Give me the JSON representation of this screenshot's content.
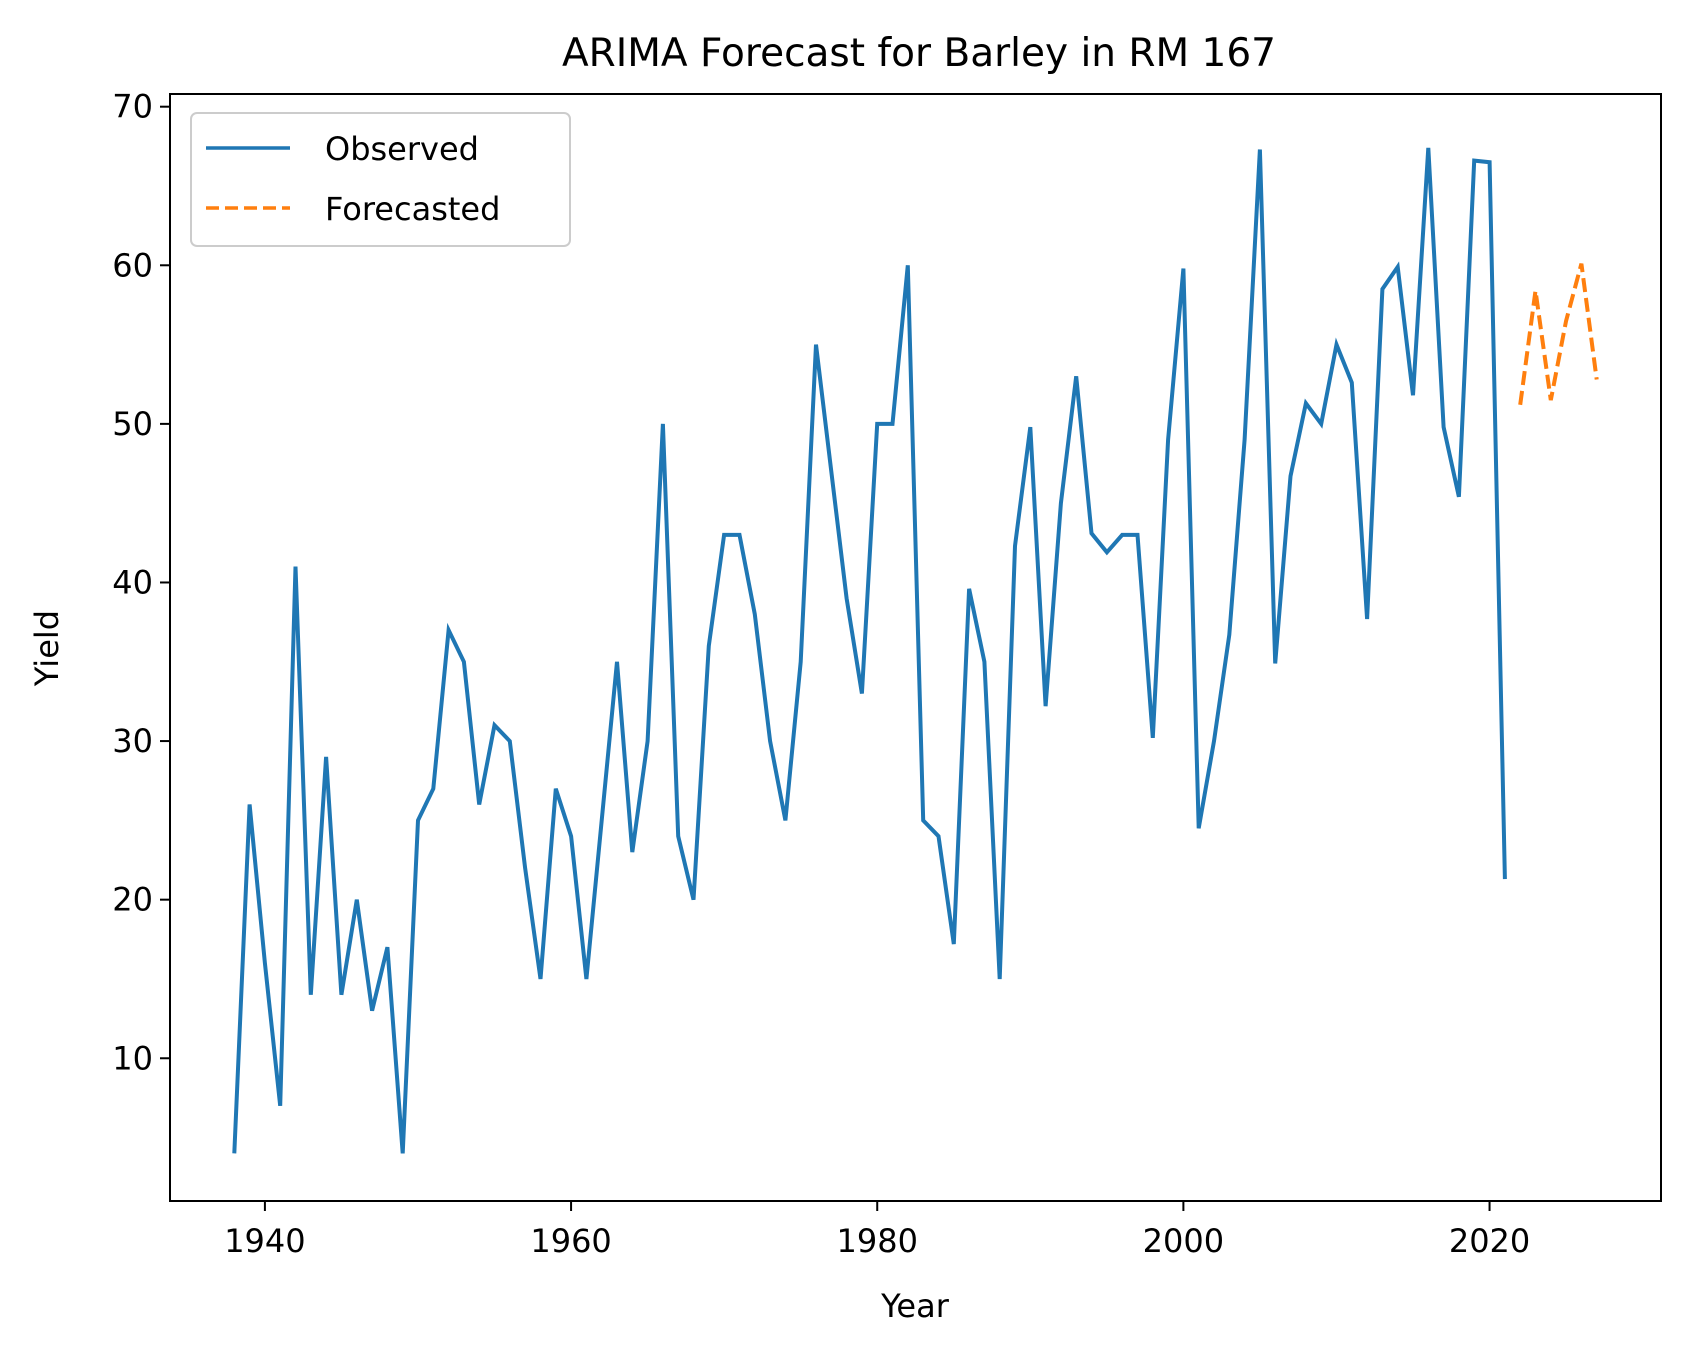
{
  "chart_data": {
    "type": "line",
    "title": "ARIMA Forecast for Barley in RM 167",
    "xlabel": "Year",
    "ylabel": "Yield",
    "xlim": [
      1933.8,
      2031.2
    ],
    "ylim": [
      1.0,
      70.8
    ],
    "xticks": [
      1940,
      1960,
      1980,
      2000,
      2020
    ],
    "yticks": [
      10,
      20,
      30,
      40,
      50,
      60,
      70
    ],
    "grid": false,
    "legend_position": "upper-left",
    "series": [
      {
        "name": "Observed",
        "color": "#1f77b4",
        "style": "solid",
        "x": [
          1938,
          1939,
          1940,
          1941,
          1942,
          1943,
          1944,
          1945,
          1946,
          1947,
          1948,
          1949,
          1950,
          1951,
          1952,
          1953,
          1954,
          1955,
          1956,
          1957,
          1958,
          1959,
          1960,
          1961,
          1962,
          1963,
          1964,
          1965,
          1966,
          1967,
          1968,
          1969,
          1970,
          1971,
          1972,
          1973,
          1974,
          1975,
          1976,
          1977,
          1978,
          1979,
          1980,
          1981,
          1982,
          1983,
          1984,
          1985,
          1986,
          1987,
          1988,
          1989,
          1990,
          1991,
          1992,
          1993,
          1994,
          1995,
          1996,
          1997,
          1998,
          1999,
          2000,
          2001,
          2002,
          2003,
          2004,
          2005,
          2006,
          2007,
          2008,
          2009,
          2010,
          2011,
          2012,
          2013,
          2014,
          2015,
          2016,
          2017,
          2018,
          2019,
          2020,
          2021
        ],
        "y": [
          4,
          26,
          16,
          7,
          41,
          14,
          29,
          14,
          20,
          13,
          17,
          4,
          25,
          27,
          37,
          35,
          26,
          31,
          30,
          22,
          15,
          27,
          24,
          15,
          25,
          35,
          23,
          30,
          50,
          24,
          20,
          36,
          43,
          43,
          38,
          30,
          25,
          35,
          55,
          47,
          39,
          33,
          50,
          50,
          60,
          25,
          24,
          17.2,
          39.6,
          35,
          15,
          42.3,
          49.8,
          32.2,
          45,
          53,
          43.1,
          41.9,
          43,
          43,
          30.2,
          49,
          59.8,
          24.5,
          30,
          36.7,
          49,
          67.3,
          34.9,
          46.7,
          51.3,
          50,
          55,
          52.6,
          37.7,
          58.5,
          59.9,
          51.8,
          67.4,
          49.8,
          45.4,
          66.6,
          66.5,
          21.3
        ]
      },
      {
        "name": "Forecasted",
        "color": "#ff7f0e",
        "style": "dashed",
        "x": [
          2022,
          2023,
          2024,
          2025,
          2026,
          2027
        ],
        "y": [
          51.2,
          58.4,
          51.5,
          56.5,
          60.1,
          52.8
        ]
      }
    ]
  }
}
